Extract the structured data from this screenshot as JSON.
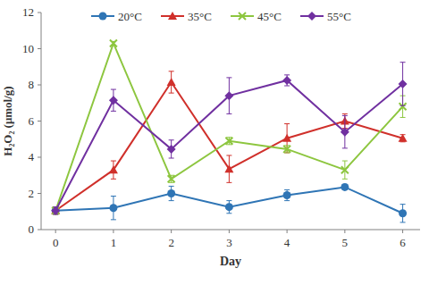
{
  "chart_data": {
    "type": "line",
    "x_label": "Day",
    "y_label": "H₂O₂ (μmol/g)",
    "x": [
      0,
      1,
      2,
      3,
      4,
      5,
      6
    ],
    "xlim": [
      -0.25,
      6.3
    ],
    "xticks": [
      0,
      1,
      2,
      3,
      4,
      5,
      6
    ],
    "ylim": [
      0,
      12
    ],
    "yticks": [
      0,
      2,
      4,
      6,
      8,
      10,
      12
    ],
    "grid": false,
    "legend": "top",
    "series": [
      {
        "name": "20°C",
        "color": "#2f75b5",
        "marker": "circle",
        "line_style": "solid",
        "values": [
          1.05,
          1.2,
          2.0,
          1.25,
          1.9,
          2.35,
          0.9
        ],
        "errors": [
          0.2,
          0.65,
          0.4,
          0.35,
          0.3,
          0.15,
          0.5
        ]
      },
      {
        "name": "35°C",
        "color": "#d0302b",
        "marker": "triangle",
        "line_style": "solid",
        "values": [
          1.05,
          3.3,
          8.15,
          3.35,
          5.05,
          6.0,
          5.05
        ],
        "errors": [
          0.2,
          0.5,
          0.6,
          0.75,
          0.8,
          0.4,
          0.2
        ]
      },
      {
        "name": "45°C",
        "color": "#8dc63f",
        "marker": "x",
        "line_style": "solid",
        "values": [
          1.05,
          10.3,
          2.8,
          4.9,
          4.45,
          3.3,
          6.8
        ],
        "errors": [
          0.2,
          0.1,
          0.2,
          0.2,
          0.2,
          0.5,
          0.6
        ]
      },
      {
        "name": "55°C",
        "color": "#7030a0",
        "marker": "diamond",
        "line_style": "solid",
        "values": [
          1.05,
          7.15,
          4.45,
          7.4,
          8.25,
          5.4,
          8.05
        ],
        "errors": [
          0.2,
          0.6,
          0.5,
          1.0,
          0.3,
          0.9,
          1.2
        ]
      }
    ]
  }
}
